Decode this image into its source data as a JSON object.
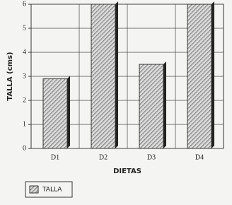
{
  "chart_data": {
    "type": "bar",
    "y_label": "TALLA (cms)",
    "x_label": "DIETAS",
    "categories": [
      "D1",
      "D2",
      "D3",
      "D4"
    ],
    "series": [
      {
        "name": "TALLA",
        "color": "#9a9a9a",
        "values": [
          2.9,
          6,
          3.5,
          6
        ]
      }
    ],
    "ylim": [
      0,
      6
    ],
    "yticks": [
      0,
      1,
      2,
      3,
      4,
      5,
      6
    ],
    "grid": true,
    "legend": "bottom-left"
  }
}
